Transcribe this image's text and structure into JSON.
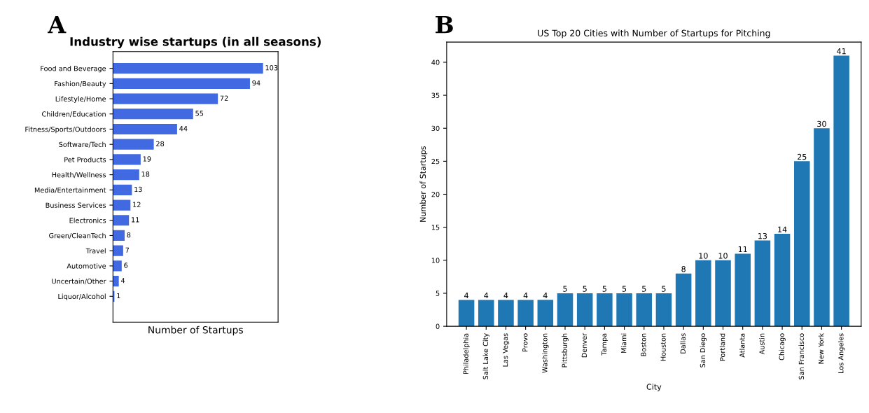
{
  "chart_data": [
    {
      "type": "bar",
      "orientation": "horizontal",
      "title": "Industry wise startups (in all seasons)",
      "xlabel": "Number of Startups",
      "annotations": [
        "A"
      ],
      "categories": [
        "Food and Beverage",
        "Fashion/Beauty",
        "Lifestyle/Home",
        "Children/Education",
        "Fitness/Sports/Outdoors",
        "Software/Tech",
        "Pet Products",
        "Health/Wellness",
        "Media/Entertainment",
        "Business Services",
        "Electronics",
        "Green/CleanTech",
        "Travel",
        "Automotive",
        "Uncertain/Other",
        "Liquor/Alcohol"
      ],
      "values": [
        103,
        94,
        72,
        55,
        44,
        28,
        19,
        18,
        13,
        12,
        11,
        8,
        7,
        6,
        4,
        1
      ],
      "color": "#4169e1",
      "data_labels": true,
      "tick_labels": "y",
      "grid": false,
      "legend": false
    },
    {
      "type": "bar",
      "title": "US Top 20 Cities with Number of Startups for Pitching",
      "xlabel": "City",
      "ylabel": "Number of Startups",
      "annotations": [
        "B"
      ],
      "categories": [
        "Philadelphia",
        "Salt Lake City",
        "Las Vegas",
        "Provo",
        "Washington",
        "Pittsburgh",
        "Denver",
        "Tampa",
        "Miami",
        "Boston",
        "Houston",
        "Dallas",
        "San Diego",
        "Portland",
        "Atlanta",
        "Austin",
        "Chicago",
        "San Francisco",
        "New York",
        "Los Angeles"
      ],
      "values": [
        4,
        4,
        4,
        4,
        4,
        5,
        5,
        5,
        5,
        5,
        5,
        8,
        10,
        10,
        11,
        13,
        14,
        25,
        30,
        41
      ],
      "color": "#1f77b4",
      "data_labels": true,
      "ylim": [
        0,
        43.05
      ],
      "yticks": [
        0,
        5,
        10,
        15,
        20,
        25,
        30,
        35,
        40
      ],
      "grid": false,
      "legend": false
    }
  ]
}
